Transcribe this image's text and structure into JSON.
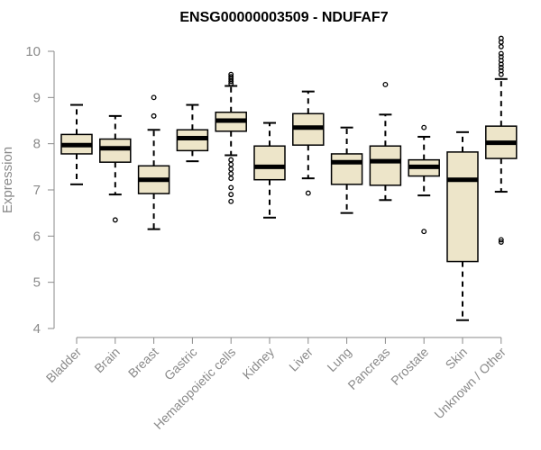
{
  "chart_data": {
    "type": "box",
    "title": "ENSG00000003509 - NDUFAF7",
    "xlabel": "",
    "ylabel": "Expression",
    "ylim": [
      4,
      10.2
    ],
    "yticks": [
      4,
      5,
      6,
      7,
      8,
      9,
      10
    ],
    "categories": [
      "Bladder",
      "Brain",
      "Breast",
      "Gastric",
      "Hematopoietic cells",
      "Kidney",
      "Liver",
      "Lung",
      "Pancreas",
      "Prostate",
      "Skin",
      "Unknown / Other"
    ],
    "series": [
      {
        "category": "Bladder",
        "whisker_low": 7.12,
        "q1": 7.78,
        "median": 7.97,
        "q3": 8.2,
        "whisker_high": 8.84,
        "outliers": []
      },
      {
        "category": "Brain",
        "whisker_low": 6.9,
        "q1": 7.6,
        "median": 7.9,
        "q3": 8.1,
        "whisker_high": 8.6,
        "outliers": [
          6.35
        ]
      },
      {
        "category": "Breast",
        "whisker_low": 6.15,
        "q1": 6.92,
        "median": 7.22,
        "q3": 7.52,
        "whisker_high": 8.3,
        "outliers": [
          8.6,
          9.0
        ]
      },
      {
        "category": "Gastric",
        "whisker_low": 7.62,
        "q1": 7.85,
        "median": 8.12,
        "q3": 8.3,
        "whisker_high": 8.84,
        "outliers": []
      },
      {
        "category": "Hematopoietic cells",
        "whisker_low": 7.75,
        "q1": 8.27,
        "median": 8.5,
        "q3": 8.68,
        "whisker_high": 9.25,
        "outliers": [
          9.3,
          9.35,
          9.4,
          9.45,
          9.5,
          7.65,
          7.55,
          7.45,
          7.35,
          7.25,
          7.05,
          6.9,
          6.75
        ]
      },
      {
        "category": "Kidney",
        "whisker_low": 6.4,
        "q1": 7.22,
        "median": 7.5,
        "q3": 7.95,
        "whisker_high": 8.45,
        "outliers": []
      },
      {
        "category": "Liver",
        "whisker_low": 7.25,
        "q1": 7.97,
        "median": 8.35,
        "q3": 8.65,
        "whisker_high": 9.13,
        "outliers": [
          6.93
        ]
      },
      {
        "category": "Lung",
        "whisker_low": 6.5,
        "q1": 7.12,
        "median": 7.6,
        "q3": 7.78,
        "whisker_high": 8.35,
        "outliers": []
      },
      {
        "category": "Pancreas",
        "whisker_low": 6.78,
        "q1": 7.1,
        "median": 7.62,
        "q3": 7.95,
        "whisker_high": 8.63,
        "outliers": [
          9.28
        ]
      },
      {
        "category": "Prostate",
        "whisker_low": 6.88,
        "q1": 7.3,
        "median": 7.5,
        "q3": 7.65,
        "whisker_high": 8.15,
        "outliers": [
          8.35,
          6.1
        ]
      },
      {
        "category": "Skin",
        "whisker_low": 4.18,
        "q1": 5.45,
        "median": 7.22,
        "q3": 7.82,
        "whisker_high": 8.25,
        "outliers": []
      },
      {
        "category": "Unknown / Other",
        "whisker_low": 6.96,
        "q1": 7.68,
        "median": 8.02,
        "q3": 8.38,
        "whisker_high": 9.4,
        "outliers": [
          9.5,
          9.58,
          9.65,
          9.72,
          9.8,
          9.88,
          9.95,
          10.1,
          10.2,
          10.28,
          5.92,
          5.87
        ]
      }
    ],
    "box_fill": "#ede5c9",
    "box_stroke": "#000000",
    "axis_color": "#8a8a8a",
    "grid": false,
    "legend": "none"
  }
}
